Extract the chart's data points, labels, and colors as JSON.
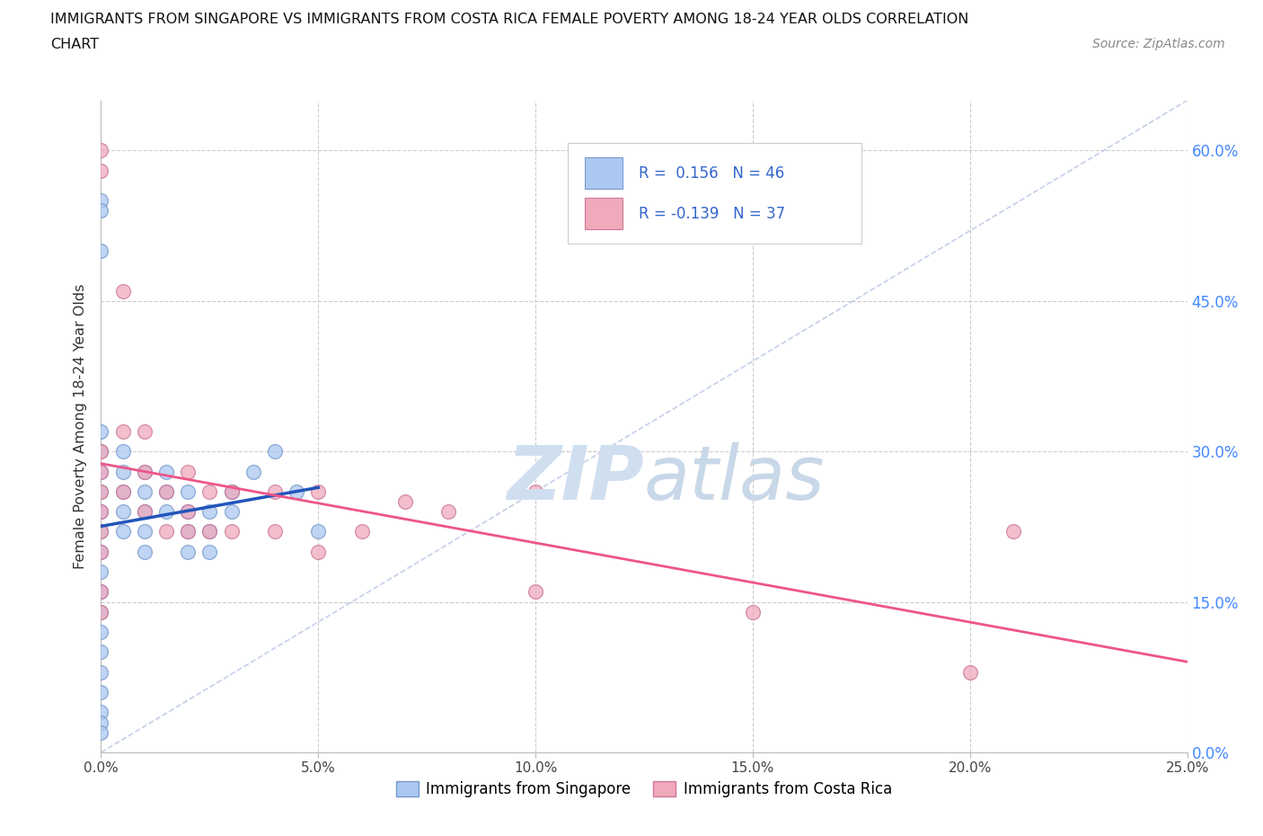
{
  "title_line1": "IMMIGRANTS FROM SINGAPORE VS IMMIGRANTS FROM COSTA RICA FEMALE POVERTY AMONG 18-24 YEAR OLDS CORRELATION",
  "title_line2": "CHART",
  "source_text": "Source: ZipAtlas.com",
  "ylabel": "Female Poverty Among 18-24 Year Olds",
  "xlim": [
    0.0,
    0.25
  ],
  "ylim": [
    0.0,
    0.65
  ],
  "x_ticks": [
    0.0,
    0.05,
    0.1,
    0.15,
    0.2,
    0.25
  ],
  "x_tick_labels": [
    "0.0%",
    "5.0%",
    "10.0%",
    "15.0%",
    "20.0%",
    "25.0%"
  ],
  "y_ticks": [
    0.0,
    0.15,
    0.3,
    0.45,
    0.6
  ],
  "y_tick_labels": [
    "0.0%",
    "15.0%",
    "30.0%",
    "45.0%",
    "60.0%"
  ],
  "singapore_color": "#aac8f0",
  "costa_rica_color": "#f0aabb",
  "singapore_edge": "#7799cc",
  "costa_rica_edge": "#cc7799",
  "singapore_line_color": "#2255bb",
  "costa_rica_line_color": "#ee5588",
  "R_singapore": 0.156,
  "N_singapore": 46,
  "R_costa_rica": -0.139,
  "N_costa_rica": 37,
  "watermark_color": "#d0dff0",
  "sg_x": [
    0.0,
    0.0,
    0.0,
    0.0,
    0.0,
    0.0,
    0.0,
    0.0,
    0.0,
    0.0,
    0.0,
    0.0,
    0.0,
    0.0,
    0.0,
    0.0,
    0.0,
    0.0,
    0.0,
    0.0,
    0.005,
    0.005,
    0.005,
    0.005,
    0.005,
    0.01,
    0.01,
    0.01,
    0.01,
    0.01,
    0.015,
    0.015,
    0.015,
    0.02,
    0.02,
    0.02,
    0.02,
    0.025,
    0.025,
    0.025,
    0.03,
    0.03,
    0.035,
    0.04,
    0.045,
    0.05
  ],
  "sg_y": [
    0.55,
    0.54,
    0.5,
    0.32,
    0.3,
    0.28,
    0.26,
    0.24,
    0.22,
    0.2,
    0.18,
    0.16,
    0.14,
    0.12,
    0.1,
    0.08,
    0.06,
    0.04,
    0.03,
    0.02,
    0.3,
    0.28,
    0.26,
    0.24,
    0.22,
    0.28,
    0.26,
    0.24,
    0.22,
    0.2,
    0.28,
    0.26,
    0.24,
    0.26,
    0.24,
    0.22,
    0.2,
    0.24,
    0.22,
    0.2,
    0.26,
    0.24,
    0.28,
    0.3,
    0.26,
    0.22
  ],
  "cr_x": [
    0.0,
    0.0,
    0.0,
    0.0,
    0.0,
    0.0,
    0.0,
    0.0,
    0.0,
    0.0,
    0.005,
    0.005,
    0.005,
    0.01,
    0.01,
    0.01,
    0.015,
    0.015,
    0.02,
    0.02,
    0.02,
    0.025,
    0.025,
    0.03,
    0.03,
    0.04,
    0.04,
    0.05,
    0.05,
    0.06,
    0.07,
    0.08,
    0.1,
    0.1,
    0.15,
    0.2,
    0.21
  ],
  "cr_y": [
    0.6,
    0.58,
    0.3,
    0.28,
    0.26,
    0.24,
    0.22,
    0.2,
    0.16,
    0.14,
    0.46,
    0.32,
    0.26,
    0.32,
    0.28,
    0.24,
    0.26,
    0.22,
    0.28,
    0.24,
    0.22,
    0.26,
    0.22,
    0.26,
    0.22,
    0.26,
    0.22,
    0.26,
    0.2,
    0.22,
    0.25,
    0.24,
    0.26,
    0.16,
    0.14,
    0.08,
    0.22
  ]
}
